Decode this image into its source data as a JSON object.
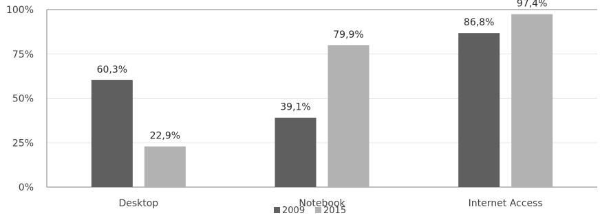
{
  "chart_data": {
    "type": "bar",
    "categories": [
      "Desktop",
      "Notebook",
      "Internet Access"
    ],
    "series": [
      {
        "name": "2009",
        "values": [
          60.3,
          39.1,
          86.8
        ],
        "labels": [
          "60,3%",
          "39,1%",
          "86,8%"
        ],
        "color": "#5f5f5f"
      },
      {
        "name": "2015",
        "values": [
          22.9,
          79.9,
          97.4
        ],
        "labels": [
          "22,9%",
          "79,9%",
          "97,4%"
        ],
        "color": "#b2b2b2"
      }
    ],
    "ylim": [
      0,
      100
    ],
    "yticks": [
      0,
      25,
      50,
      75,
      100
    ],
    "ytick_labels": [
      "0%",
      "25%",
      "50%",
      "75%",
      "100%"
    ],
    "title": "",
    "xlabel": "",
    "ylabel": "",
    "grid": true,
    "legend_position": "bottom-center"
  }
}
